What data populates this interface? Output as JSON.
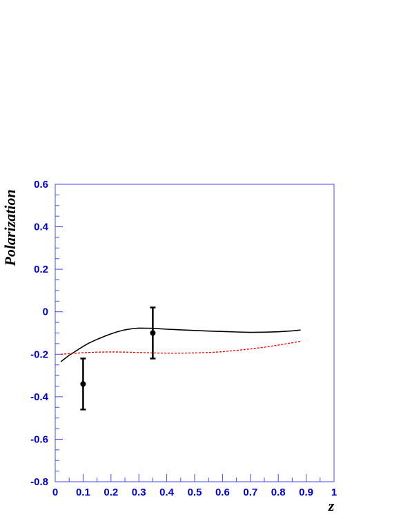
{
  "chart_data": {
    "type": "line",
    "title": "",
    "xlabel": "z",
    "ylabel": "Polarization",
    "xlim": [
      0,
      1
    ],
    "ylim": [
      -0.8,
      0.6
    ],
    "x_ticks": [
      "0",
      "0.1",
      "0.2",
      "0.3",
      "0.4",
      "0.5",
      "0.6",
      "0.7",
      "0.8",
      "0.9",
      "1"
    ],
    "y_ticks": [
      "-0.8",
      "-0.6",
      "-0.4",
      "-0.2",
      "0",
      "0.2",
      "0.4",
      "0.6"
    ],
    "grid": false,
    "series": [
      {
        "style": "solid",
        "color": "#000000",
        "x": [
          0.02,
          0.05,
          0.08,
          0.1,
          0.12,
          0.15,
          0.18,
          0.2,
          0.22,
          0.25,
          0.28,
          0.3,
          0.35,
          0.4,
          0.45,
          0.5,
          0.55,
          0.6,
          0.65,
          0.7,
          0.75,
          0.8,
          0.85,
          0.88
        ],
        "y": [
          -0.235,
          -0.205,
          -0.18,
          -0.163,
          -0.148,
          -0.13,
          -0.114,
          -0.104,
          -0.095,
          -0.085,
          -0.079,
          -0.077,
          -0.078,
          -0.082,
          -0.085,
          -0.088,
          -0.091,
          -0.093,
          -0.095,
          -0.097,
          -0.096,
          -0.094,
          -0.09,
          -0.086
        ]
      },
      {
        "style": "dashed",
        "color": "#ff0000",
        "x": [
          0.02,
          0.05,
          0.1,
          0.15,
          0.2,
          0.25,
          0.3,
          0.35,
          0.4,
          0.45,
          0.5,
          0.55,
          0.6,
          0.65,
          0.7,
          0.75,
          0.8,
          0.85,
          0.88
        ],
        "y": [
          -0.2,
          -0.197,
          -0.193,
          -0.19,
          -0.189,
          -0.19,
          -0.192,
          -0.194,
          -0.195,
          -0.195,
          -0.194,
          -0.192,
          -0.188,
          -0.182,
          -0.175,
          -0.167,
          -0.157,
          -0.146,
          -0.139
        ]
      }
    ],
    "points": [
      {
        "x": 0.1,
        "y": -0.34,
        "err_low": -0.46,
        "err_high": -0.22
      },
      {
        "x": 0.35,
        "y": -0.1,
        "err_low": -0.22,
        "err_high": 0.02
      }
    ],
    "frame_color": "#4444ff",
    "tick_label_color": "#0000cc"
  }
}
